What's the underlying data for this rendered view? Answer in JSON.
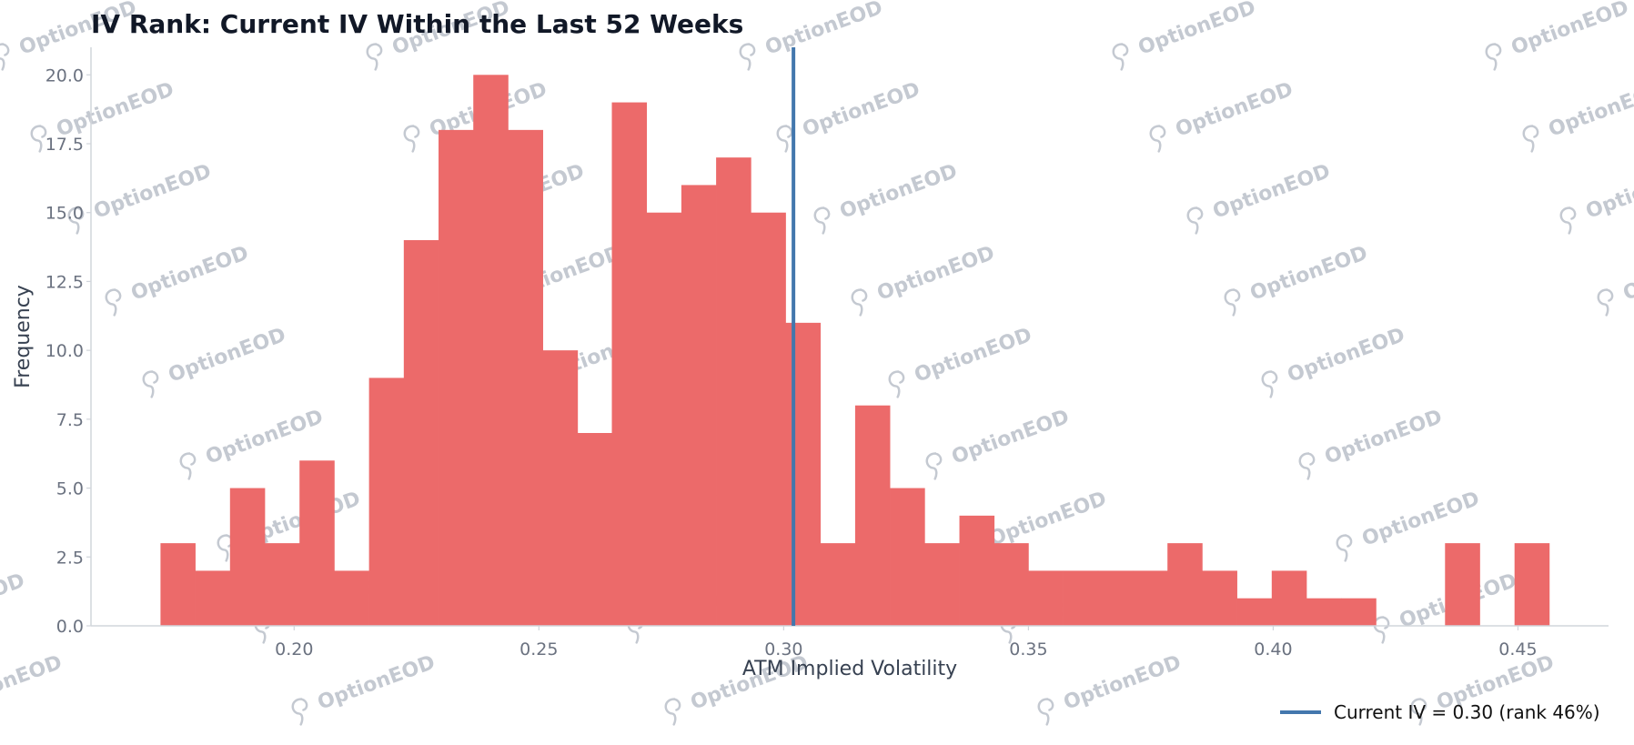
{
  "chart_data": {
    "type": "bar",
    "title": "IV Rank: Current IV Within the Last 52 Weeks",
    "xlabel": "ATM Implied Volatility",
    "ylabel": "Frequency",
    "xlim": [
      0.1585,
      0.4685
    ],
    "ylim": [
      0,
      21
    ],
    "bin_width": 0.00709,
    "bins": [
      {
        "x0": 0.1727,
        "count": 3
      },
      {
        "x0": 0.1798,
        "count": 2
      },
      {
        "x0": 0.1869,
        "count": 5
      },
      {
        "x0": 0.194,
        "count": 3
      },
      {
        "x0": 0.2011,
        "count": 6
      },
      {
        "x0": 0.2082,
        "count": 2
      },
      {
        "x0": 0.2153,
        "count": 9
      },
      {
        "x0": 0.2224,
        "count": 14
      },
      {
        "x0": 0.2295,
        "count": 18
      },
      {
        "x0": 0.2366,
        "count": 20
      },
      {
        "x0": 0.2437,
        "count": 18
      },
      {
        "x0": 0.2508,
        "count": 10
      },
      {
        "x0": 0.2578,
        "count": 7
      },
      {
        "x0": 0.2649,
        "count": 19
      },
      {
        "x0": 0.272,
        "count": 15
      },
      {
        "x0": 0.2791,
        "count": 16
      },
      {
        "x0": 0.2862,
        "count": 17
      },
      {
        "x0": 0.2933,
        "count": 15
      },
      {
        "x0": 0.3004,
        "count": 11
      },
      {
        "x0": 0.3075,
        "count": 3
      },
      {
        "x0": 0.3146,
        "count": 8
      },
      {
        "x0": 0.3217,
        "count": 5
      },
      {
        "x0": 0.3288,
        "count": 3
      },
      {
        "x0": 0.3359,
        "count": 4
      },
      {
        "x0": 0.3429,
        "count": 3
      },
      {
        "x0": 0.35,
        "count": 2
      },
      {
        "x0": 0.3571,
        "count": 2
      },
      {
        "x0": 0.3642,
        "count": 2
      },
      {
        "x0": 0.3713,
        "count": 2
      },
      {
        "x0": 0.3784,
        "count": 3
      },
      {
        "x0": 0.3855,
        "count": 2
      },
      {
        "x0": 0.3926,
        "count": 1
      },
      {
        "x0": 0.3997,
        "count": 2
      },
      {
        "x0": 0.4068,
        "count": 1
      },
      {
        "x0": 0.4139,
        "count": 1
      },
      {
        "x0": 0.421,
        "count": 0
      },
      {
        "x0": 0.428,
        "count": 0
      },
      {
        "x0": 0.4351,
        "count": 3
      },
      {
        "x0": 0.4422,
        "count": 0
      },
      {
        "x0": 0.4493,
        "count": 3
      }
    ],
    "x_ticks": [
      "0.20",
      "0.25",
      "0.30",
      "0.35",
      "0.40",
      "0.45"
    ],
    "x_tick_values": [
      0.2,
      0.25,
      0.3,
      0.35,
      0.4,
      0.45
    ],
    "y_ticks": [
      "0.0",
      "2.5",
      "5.0",
      "7.5",
      "10.0",
      "12.5",
      "15.0",
      "17.5",
      "20.0"
    ],
    "y_tick_values": [
      0,
      2.5,
      5,
      7.5,
      10,
      12.5,
      15,
      17.5,
      20
    ],
    "current_iv": 0.302,
    "legend": {
      "label": "Current IV = 0.30 (rank 46%)",
      "placement": "bottom-right"
    },
    "grid": false,
    "colors": {
      "bars": "#ec6a6a",
      "current_line": "#4377ad",
      "axis": "#d1d5db"
    }
  },
  "watermark": {
    "text": "OptionEOD",
    "icon": "seahorse-logo-icon"
  }
}
